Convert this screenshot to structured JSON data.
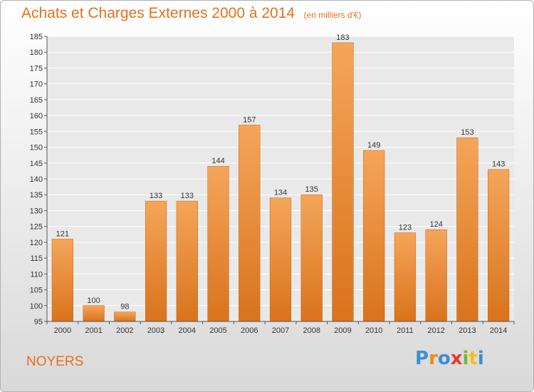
{
  "chart_data": {
    "type": "bar",
    "title": "Achats et Charges Externes 2000 à 2014",
    "subtitle": "(en milliers d'€)",
    "categories": [
      "2000",
      "2001",
      "2002",
      "2003",
      "2004",
      "2005",
      "2006",
      "2007",
      "2008",
      "2009",
      "2010",
      "2011",
      "2012",
      "2013",
      "2014"
    ],
    "values": [
      121,
      100,
      98,
      133,
      133,
      144,
      157,
      134,
      135,
      183,
      149,
      123,
      124,
      153,
      143
    ],
    "ylim": [
      95,
      185
    ],
    "yticks": [
      95,
      100,
      105,
      110,
      115,
      120,
      125,
      130,
      135,
      140,
      145,
      150,
      155,
      160,
      165,
      170,
      175,
      180,
      185
    ],
    "grid": true,
    "bar_color_top": "#f5a55a",
    "bar_color_bottom": "#d9731c"
  },
  "town_label": "NOYERS",
  "logo": {
    "letters": [
      "P",
      "r",
      "o",
      "x",
      "i",
      "t",
      "i"
    ],
    "colors": [
      "#3a8fd6",
      "#f08a1a",
      "#3a8fd6",
      "#e83a2a",
      "#7ab53a",
      "#f0c020",
      "#3a8fd6"
    ]
  }
}
